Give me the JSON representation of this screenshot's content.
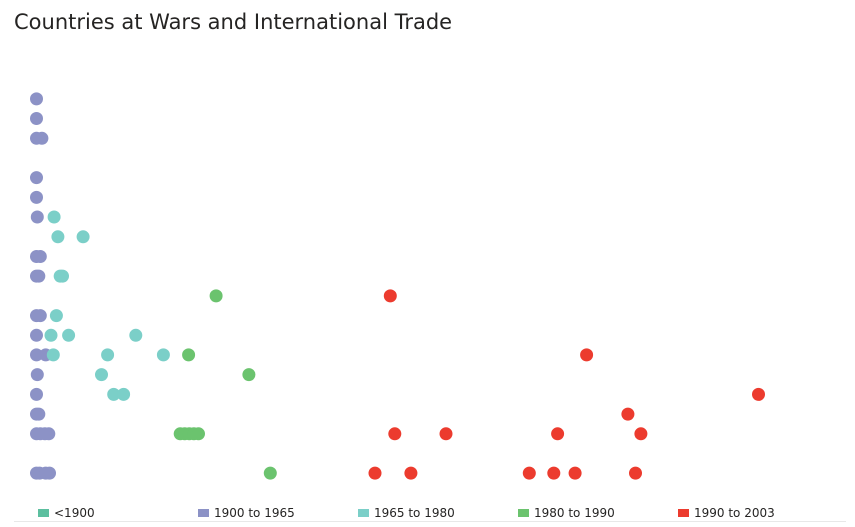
{
  "title": "Countries at Wars and International Trade",
  "chart_data": {
    "type": "scatter",
    "title": "Countries at Wars and International Trade",
    "xlabel": "",
    "ylabel": "",
    "xlim": [
      0,
      100
    ],
    "ylim": [
      0,
      20
    ],
    "grid": false,
    "legend_position": "bottom",
    "series": [
      {
        "name": "<1900",
        "color": "#5cbf9f",
        "points": []
      },
      {
        "name": "1900 to 1965",
        "color": "#8c92c6",
        "points": [
          [
            0.2,
            19.5
          ],
          [
            0.2,
            18.5
          ],
          [
            0.2,
            17.5
          ],
          [
            0.9,
            17.5
          ],
          [
            0.2,
            15.5
          ],
          [
            0.2,
            14.5
          ],
          [
            0.3,
            13.5
          ],
          [
            0.2,
            11.5
          ],
          [
            0.7,
            11.5
          ],
          [
            0.2,
            10.5
          ],
          [
            0.5,
            10.5
          ],
          [
            0.2,
            8.5
          ],
          [
            0.7,
            8.5
          ],
          [
            0.2,
            7.5
          ],
          [
            0.2,
            6.5
          ],
          [
            1.4,
            6.5
          ],
          [
            0.3,
            5.5
          ],
          [
            0.2,
            4.5
          ],
          [
            0.2,
            3.5
          ],
          [
            0.5,
            3.5
          ],
          [
            0.2,
            2.5
          ],
          [
            0.7,
            2.5
          ],
          [
            1.3,
            2.5
          ],
          [
            1.8,
            2.5
          ],
          [
            0.2,
            0.5
          ],
          [
            0.6,
            0.5
          ],
          [
            1.4,
            0.5
          ],
          [
            1.9,
            0.5
          ]
        ]
      },
      {
        "name": "1965 to 1980",
        "color": "#7bcfc8",
        "points": [
          [
            2.5,
            13.5
          ],
          [
            3.0,
            12.5
          ],
          [
            6.3,
            12.5
          ],
          [
            3.3,
            10.5
          ],
          [
            3.6,
            10.5
          ],
          [
            2.8,
            8.5
          ],
          [
            2.1,
            7.5
          ],
          [
            4.4,
            7.5
          ],
          [
            13.2,
            7.5
          ],
          [
            2.4,
            6.5
          ],
          [
            9.5,
            6.5
          ],
          [
            16.8,
            6.5
          ],
          [
            8.7,
            5.5
          ],
          [
            10.3,
            4.5
          ],
          [
            11.6,
            4.5
          ]
        ]
      },
      {
        "name": "1980 to 1990",
        "color": "#6bc36e",
        "points": [
          [
            23.7,
            9.5
          ],
          [
            20.1,
            6.5
          ],
          [
            28.0,
            5.5
          ],
          [
            19.0,
            2.5
          ],
          [
            19.6,
            2.5
          ],
          [
            20.2,
            2.5
          ],
          [
            20.8,
            2.5
          ],
          [
            21.4,
            2.5
          ],
          [
            30.8,
            0.5
          ]
        ]
      },
      {
        "name": "1990 to 2003",
        "color": "#ec3b2e",
        "points": [
          [
            46.5,
            9.5
          ],
          [
            72.2,
            6.5
          ],
          [
            94.7,
            4.5
          ],
          [
            77.6,
            3.5
          ],
          [
            47.1,
            2.5
          ],
          [
            53.8,
            2.5
          ],
          [
            68.4,
            2.5
          ],
          [
            79.3,
            2.5
          ],
          [
            44.5,
            0.5
          ],
          [
            49.2,
            0.5
          ],
          [
            64.7,
            0.5
          ],
          [
            67.9,
            0.5
          ],
          [
            70.7,
            0.5
          ],
          [
            78.6,
            0.5
          ]
        ]
      }
    ]
  }
}
